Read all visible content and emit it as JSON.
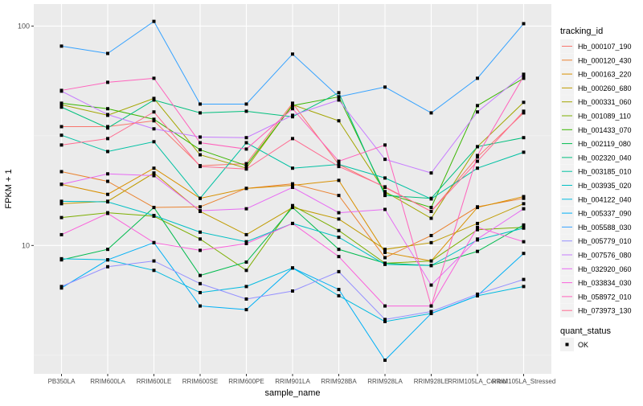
{
  "chart_data": {
    "type": "line",
    "xlabel": "sample_name",
    "ylabel": "FPKM + 1",
    "yscale": "log10",
    "ylim": [
      2.6,
      126
    ],
    "yticks": [
      10,
      100
    ],
    "yticklabels": [
      "10",
      "100"
    ],
    "grid": true,
    "legend_position": "right",
    "categories": [
      "PB350LA",
      "RRIM600LA",
      "RRIM600LE",
      "RRIM600SE",
      "RRIM600PE",
      "RRIM901LA",
      "RRIM928BA",
      "RRIM928LA",
      "RRIM928LE",
      "RRIM105LA_Control",
      "RRIM105LA_Stressed"
    ],
    "legend": {
      "title": "tracking_id"
    },
    "shape_legend": {
      "title": "quant_status",
      "items": [
        "OK"
      ]
    },
    "series": [
      {
        "name": "Hb_000107_190",
        "color": "#F8766D",
        "values": [
          34.8,
          34.8,
          37.0,
          23.1,
          23.6,
          44.5,
          23.4,
          18.4,
          14.3,
          25.3,
          40.2
        ]
      },
      {
        "name": "Hb_000120_430",
        "color": "#EA8331",
        "values": [
          21.7,
          19.6,
          14.9,
          15.0,
          18.2,
          19.1,
          16.9,
          8.8,
          11.1,
          15.0,
          16.4
        ]
      },
      {
        "name": "Hb_000163_220",
        "color": "#D89000",
        "values": [
          19.0,
          17.1,
          22.5,
          16.4,
          18.2,
          18.8,
          19.8,
          9.3,
          8.5,
          14.9,
          16.7
        ]
      },
      {
        "name": "Hb_000260_680",
        "color": "#C09B00",
        "values": [
          15.5,
          15.9,
          21.4,
          14.3,
          11.2,
          14.9,
          13.2,
          9.6,
          10.3,
          12.6,
          15.5
        ]
      },
      {
        "name": "Hb_000331_060",
        "color": "#A3A500",
        "values": [
          43.8,
          39.2,
          46.8,
          25.9,
          22.5,
          43.8,
          37.0,
          17.6,
          13.3,
          28.2,
          44.9
        ]
      },
      {
        "name": "Hb_001089_110",
        "color": "#7CAE00",
        "values": [
          13.4,
          14.1,
          13.6,
          10.7,
          7.7,
          15.2,
          11.7,
          8.3,
          8.5,
          11.8,
          12.1
        ]
      },
      {
        "name": "Hb_001433_070",
        "color": "#39B600",
        "values": [
          44.5,
          42.0,
          37.6,
          27.3,
          23.1,
          43.4,
          47.6,
          17.3,
          14.9,
          43.4,
          57.8
        ]
      },
      {
        "name": "Hb_002119_080",
        "color": "#00BB4E",
        "values": [
          8.6,
          9.6,
          14.9,
          7.3,
          8.4,
          14.9,
          9.6,
          8.3,
          8.1,
          9.4,
          12.4
        ]
      },
      {
        "name": "Hb_002320_040",
        "color": "#00BF7D",
        "values": [
          42.7,
          34.3,
          46.0,
          40.2,
          40.9,
          38.6,
          49.7,
          16.9,
          16.4,
          28.2,
          31.0
        ]
      },
      {
        "name": "Hb_003185_010",
        "color": "#00C1A3",
        "values": [
          31.8,
          26.8,
          29.7,
          16.4,
          29.4,
          22.5,
          23.4,
          20.3,
          16.3,
          22.5,
          26.6
        ]
      },
      {
        "name": "Hb_003935_020",
        "color": "#00BFC4",
        "values": [
          15.9,
          15.8,
          13.7,
          11.5,
          10.4,
          12.6,
          10.9,
          8.2,
          8.1,
          10.6,
          12.0
        ]
      },
      {
        "name": "Hb_004122_040",
        "color": "#00BAE0",
        "values": [
          8.7,
          8.6,
          7.7,
          6.1,
          6.5,
          7.9,
          5.9,
          4.5,
          4.9,
          5.9,
          6.5
        ]
      },
      {
        "name": "Hb_005337_090",
        "color": "#00B0F6",
        "values": [
          6.4,
          8.6,
          10.3,
          5.3,
          5.1,
          7.9,
          6.3,
          3.0,
          4.9,
          5.9,
          9.2
        ]
      },
      {
        "name": "Hb_005588_030",
        "color": "#35A2FF",
        "values": [
          81,
          75,
          105,
          44.1,
          44.1,
          74.5,
          47.6,
          52.7,
          40.2,
          57.8,
          102.5
        ]
      },
      {
        "name": "Hb_005779_010",
        "color": "#9590FF",
        "values": [
          6.5,
          8.0,
          8.5,
          6.7,
          5.7,
          6.2,
          7.6,
          4.6,
          5.0,
          6.0,
          7.0
        ]
      },
      {
        "name": "Hb_007576_080",
        "color": "#C77CFF",
        "values": [
          50.5,
          39.5,
          34.0,
          31.2,
          31.0,
          39.2,
          46.0,
          24.7,
          21.4,
          40.6,
          60.3
        ]
      },
      {
        "name": "Hb_032920_060",
        "color": "#E76BF3",
        "values": [
          19.0,
          21.2,
          20.8,
          14.4,
          14.7,
          18.4,
          14.1,
          14.6,
          6.6,
          10.7,
          14.7
        ]
      },
      {
        "name": "Hb_033834_030",
        "color": "#FA62DB",
        "values": [
          11.2,
          14.0,
          10.3,
          9.5,
          10.2,
          12.6,
          8.9,
          5.3,
          5.3,
          12.1,
          10.4
        ]
      },
      {
        "name": "Hb_058972_010",
        "color": "#FF62BC",
        "values": [
          50.9,
          55.4,
          57.8,
          29.4,
          27.5,
          42.0,
          24.2,
          28.7,
          5.3,
          25.7,
          59.0
        ]
      },
      {
        "name": "Hb_073973_130",
        "color": "#FF6C91",
        "values": [
          28.7,
          30.7,
          40.6,
          22.9,
          22.3,
          30.7,
          22.9,
          18.5,
          14.3,
          24.2,
          40.9
        ]
      }
    ]
  }
}
